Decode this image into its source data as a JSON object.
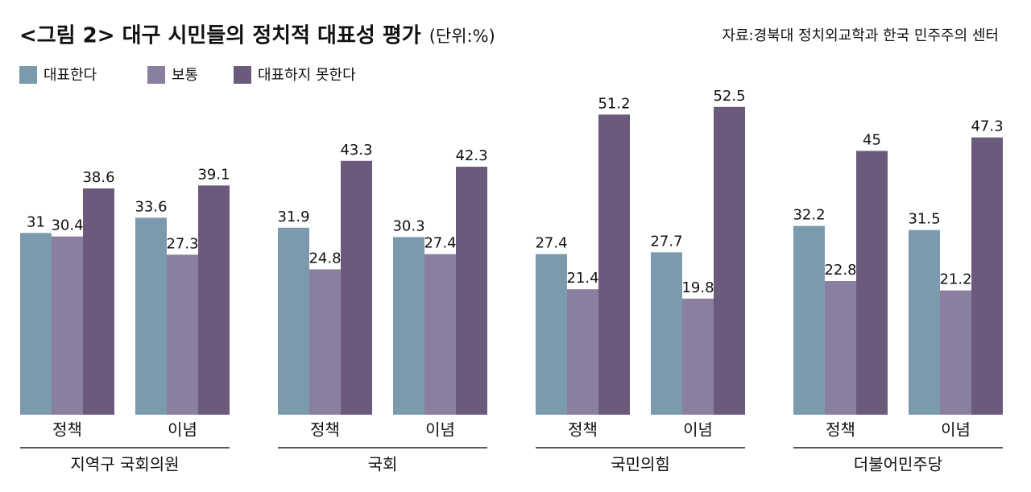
{
  "chart_data": {
    "type": "bar",
    "title": "<그림 2> 대구 시민들의 정치적 대표성 평가",
    "subtitle": "(단위:%)",
    "source": "자료:경북대 정치외교학과 한국 민주주의 센터",
    "groups": [
      "지역구 국회의원",
      "국회",
      "국민의힘",
      "더불어민주당"
    ],
    "categories": [
      "정책",
      "이념",
      "정책",
      "이념",
      "정책",
      "이념",
      "정책",
      "이념"
    ],
    "series": [
      {
        "name": "대표한다",
        "color": "#7b9aad",
        "values": [
          31,
          33.6,
          31.9,
          30.3,
          27.4,
          27.7,
          32.2,
          31.5
        ]
      },
      {
        "name": "보통",
        "color": "#8a7f9f",
        "values": [
          30.4,
          27.3,
          24.8,
          27.4,
          21.4,
          19.8,
          22.8,
          21.2
        ]
      },
      {
        "name": "대표하지 못한다",
        "color": "#6b5a7b",
        "values": [
          38.6,
          39.1,
          43.3,
          42.3,
          51.2,
          52.5,
          45,
          47.3
        ]
      }
    ],
    "legend": "top-left"
  }
}
